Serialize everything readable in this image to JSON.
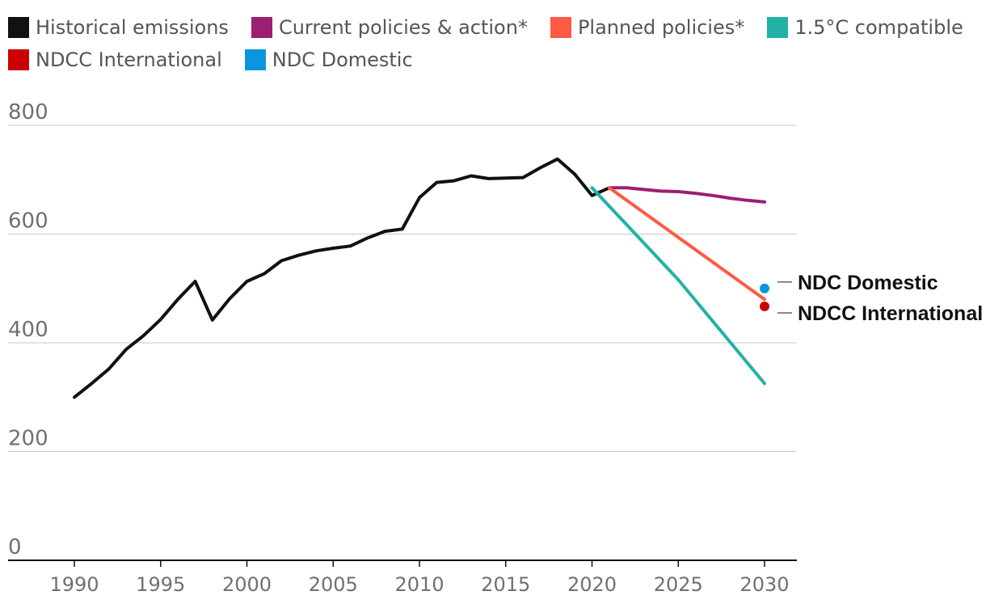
{
  "chart_data": {
    "type": "line",
    "title": "",
    "xlabel": "",
    "ylabel": "",
    "xlim": [
      1987,
      2032
    ],
    "ylim": [
      0,
      800
    ],
    "x_ticks": [
      "1990",
      "1995",
      "2000",
      "2005",
      "2010",
      "2015",
      "2020",
      "2025",
      "2030"
    ],
    "y_ticks": [
      "800",
      "600",
      "400",
      "200",
      "0"
    ],
    "legend": [
      {
        "label": "Historical emissions",
        "color": "#111111"
      },
      {
        "label": "Current policies & action*",
        "color": "#9b1f72"
      },
      {
        "label": "Planned policies*",
        "color": "#ff5a45"
      },
      {
        "label": "1.5°C compatible",
        "color": "#22b2a5"
      },
      {
        "label": "NDCC International",
        "color": "#cc0000"
      },
      {
        "label": "NDC Domestic",
        "color": "#0a96de"
      }
    ],
    "series": [
      {
        "name": "Historical emissions",
        "color": "#111111",
        "x": [
          1990,
          1991,
          1992,
          1993,
          1994,
          1995,
          1996,
          1997,
          1998,
          1999,
          2000,
          2001,
          2002,
          2003,
          2004,
          2005,
          2006,
          2007,
          2008,
          2009,
          2010,
          2011,
          2012,
          2013,
          2014,
          2015,
          2016,
          2017,
          2018,
          2019,
          2020,
          2021
        ],
        "y": [
          300,
          325,
          352,
          388,
          413,
          443,
          480,
          513,
          442,
          481,
          513,
          527,
          551,
          561,
          569,
          574,
          578,
          593,
          605,
          609,
          667,
          695,
          698,
          707,
          702,
          703,
          704,
          722,
          738,
          710,
          671,
          685
        ]
      },
      {
        "name": "Current policies & action*",
        "color": "#9b1f72",
        "x": [
          2021,
          2022,
          2023,
          2024,
          2025,
          2026,
          2027,
          2028,
          2029,
          2030
        ],
        "y": [
          685,
          685,
          682,
          679,
          678,
          675,
          671,
          666,
          662,
          659
        ]
      },
      {
        "name": "Planned policies*",
        "color": "#ff5a45",
        "x": [
          2021,
          2030
        ],
        "y": [
          685,
          480
        ]
      },
      {
        "name": "1.5°C compatible",
        "color": "#22b2a5",
        "x": [
          2020,
          2025,
          2030
        ],
        "y": [
          685,
          516,
          325
        ]
      }
    ],
    "points": [
      {
        "name": "NDC Domestic",
        "x": 2030,
        "y": 500,
        "color": "#0a96de",
        "label": "NDC Domestic"
      },
      {
        "name": "NDCC International",
        "x": 2030,
        "y": 467,
        "color": "#cc0000",
        "label": "NDCC International"
      }
    ]
  }
}
